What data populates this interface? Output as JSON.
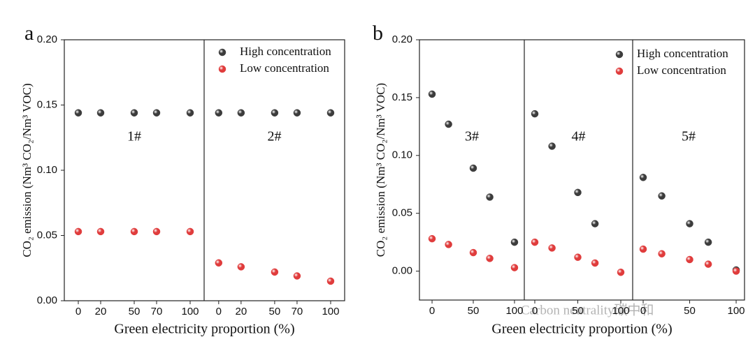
{
  "chart_data": [
    {
      "type": "scatter",
      "label": "a",
      "xlabel": "Green electricity proportion (%)",
      "ylabel": "CO₂ emission (Nm³ CO₂/Nm³ VOC)",
      "ylim": [
        0,
        0.2
      ],
      "yticks": [
        {
          "value": 0,
          "label": "0.00"
        },
        {
          "value": 0.05,
          "label": "0.05"
        },
        {
          "value": 0.1,
          "label": "0.10"
        },
        {
          "value": 0.15,
          "label": "0.15"
        },
        {
          "value": 0.2,
          "label": "0.20"
        }
      ],
      "groups": [
        {
          "label": "1#",
          "x": [
            0,
            20,
            50,
            70,
            100
          ],
          "xlim": [
            -12.5,
            112.5
          ],
          "xticks": [
            0,
            20,
            50,
            70,
            100
          ]
        },
        {
          "label": "2#",
          "x": [
            0,
            20,
            50,
            70,
            100
          ],
          "xlim": [
            -13,
            112.5
          ],
          "xticks": [
            0,
            20,
            50,
            70,
            100
          ]
        }
      ],
      "series": [
        {
          "name": "High concentration",
          "color": "#3c3c3c",
          "values": [
            [
              0.144,
              0.144,
              0.144,
              0.144,
              0.144
            ],
            [
              0.144,
              0.144,
              0.144,
              0.144,
              0.144
            ]
          ]
        },
        {
          "name": "Low concentration",
          "color": "#e03c3c",
          "values": [
            [
              0.053,
              0.053,
              0.053,
              0.053,
              0.053
            ],
            [
              0.029,
              0.026,
              0.022,
              0.019,
              0.015
            ]
          ]
        }
      ]
    },
    {
      "type": "scatter",
      "label": "b",
      "xlabel": "Green electricity proportion (%)",
      "ylabel": "CO₂ emission (Nm³ CO₂/Nm³ VOC)",
      "ylim": [
        -0.025,
        0.2
      ],
      "yticks": [
        {
          "value": 0,
          "label": "0.00"
        },
        {
          "value": 0.05,
          "label": "0.05"
        },
        {
          "value": 0.1,
          "label": "0.10"
        },
        {
          "value": 0.15,
          "label": "0.15"
        },
        {
          "value": 0.2,
          "label": "0.20"
        }
      ],
      "groups": [
        {
          "label": "3#",
          "x": [
            0,
            20,
            50,
            70,
            100
          ],
          "xlim": [
            -15.3,
            111.9
          ],
          "xticks": [
            0,
            50,
            100
          ]
        },
        {
          "label": "4#",
          "x": [
            0,
            20,
            50,
            70,
            100
          ],
          "xlim": [
            -12.2,
            113.8
          ],
          "xticks": [
            0,
            50,
            100
          ]
        },
        {
          "label": "5#",
          "x": [
            0,
            20,
            50,
            70,
            100
          ],
          "xlim": [
            -11.3,
            109
          ],
          "xticks": [
            0,
            50,
            100
          ]
        }
      ],
      "series": [
        {
          "name": "High concentration",
          "color": "#3c3c3c",
          "values": [
            [
              0.153,
              0.127,
              0.089,
              0.064,
              0.025
            ],
            [
              0.136,
              0.108,
              0.068,
              0.041,
              null
            ],
            [
              0.081,
              0.065,
              0.041,
              0.025,
              0.001
            ]
          ]
        },
        {
          "name": "Low concentration",
          "color": "#e03c3c",
          "values": [
            [
              0.028,
              0.023,
              0.016,
              0.011,
              0.003
            ],
            [
              0.025,
              0.02,
              0.012,
              0.007,
              -0.001
            ],
            [
              0.019,
              0.015,
              0.01,
              0.006,
              0
            ]
          ]
        }
      ]
    }
  ],
  "watermark": "Carbon neutrality碳中和"
}
